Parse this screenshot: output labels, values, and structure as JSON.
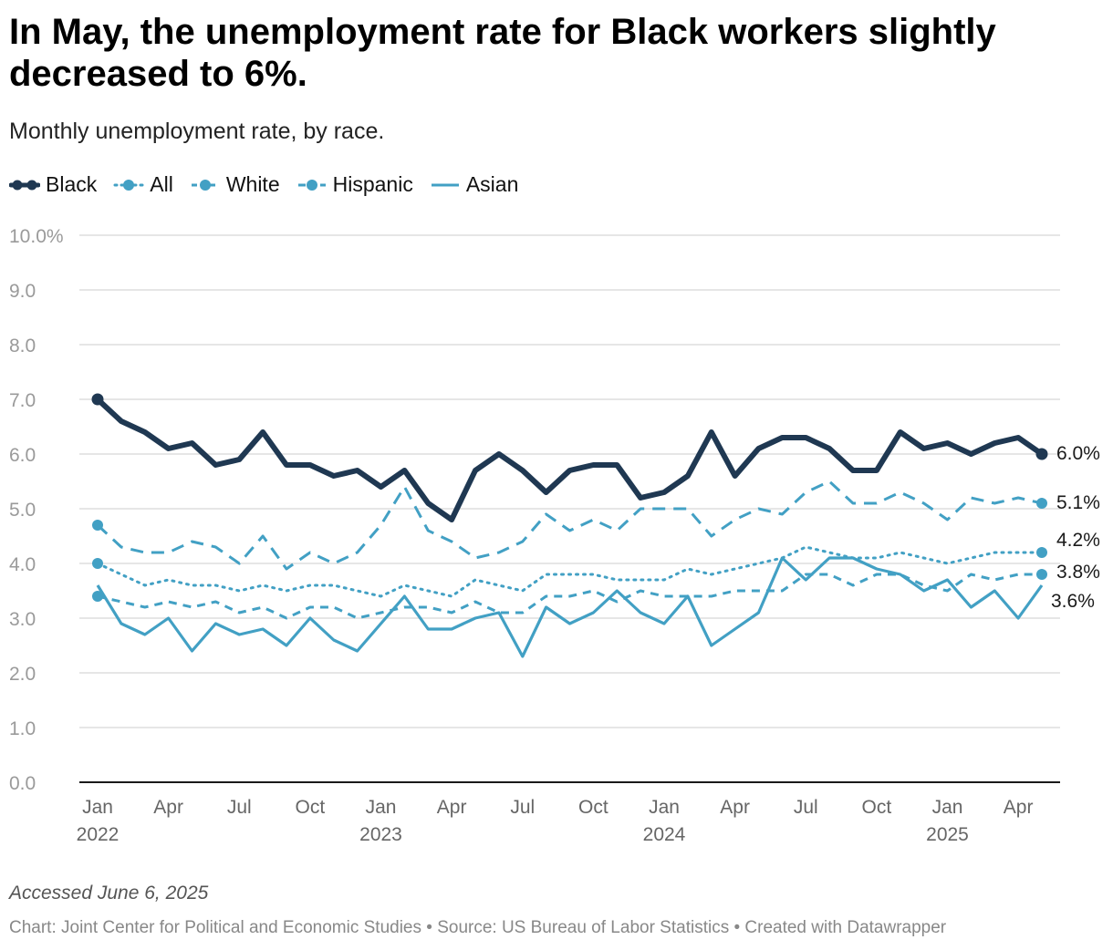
{
  "title": "In May, the unemployment rate for Black workers slightly decreased to 6%.",
  "subtitle": "Monthly unemployment rate, by race.",
  "footer": {
    "note": "Accessed June 6, 2025",
    "credit": "Chart: Joint Center for Political and Economic Studies • Source: US Bureau of Labor Statistics • Created with Datawrapper"
  },
  "colors": {
    "black": "#1f3852",
    "teal": "#42a0c4",
    "grid": "#dedede",
    "axis": "#1a1a1a",
    "tick": "#9a9a9a"
  },
  "chart_data": {
    "type": "line",
    "title": "In May, the unemployment rate for Black workers slightly decreased to 6%.",
    "ylim": [
      0,
      10
    ],
    "yticks": [
      {
        "value": 0,
        "label": "0.0"
      },
      {
        "value": 1,
        "label": "1.0"
      },
      {
        "value": 2,
        "label": "2.0"
      },
      {
        "value": 3,
        "label": "3.0"
      },
      {
        "value": 4,
        "label": "4.0"
      },
      {
        "value": 5,
        "label": "5.0"
      },
      {
        "value": 6,
        "label": "6.0"
      },
      {
        "value": 7,
        "label": "7.0"
      },
      {
        "value": 8,
        "label": "8.0"
      },
      {
        "value": 9,
        "label": "9.0"
      },
      {
        "value": 10,
        "label": "10.0%"
      }
    ],
    "x_count": 41,
    "xticks": [
      {
        "index": 0,
        "label": "Jan",
        "year": "2022"
      },
      {
        "index": 3,
        "label": "Apr",
        "year": ""
      },
      {
        "index": 6,
        "label": "Jul",
        "year": ""
      },
      {
        "index": 9,
        "label": "Oct",
        "year": ""
      },
      {
        "index": 12,
        "label": "Jan",
        "year": "2023"
      },
      {
        "index": 15,
        "label": "Apr",
        "year": ""
      },
      {
        "index": 18,
        "label": "Jul",
        "year": ""
      },
      {
        "index": 21,
        "label": "Oct",
        "year": ""
      },
      {
        "index": 24,
        "label": "Jan",
        "year": "2024"
      },
      {
        "index": 27,
        "label": "Apr",
        "year": ""
      },
      {
        "index": 30,
        "label": "Jul",
        "year": ""
      },
      {
        "index": 33,
        "label": "Oct",
        "year": ""
      },
      {
        "index": 36,
        "label": "Jan",
        "year": "2025"
      },
      {
        "index": 39,
        "label": "Apr",
        "year": ""
      }
    ],
    "series": [
      {
        "name": "Black",
        "style": "solid-thick",
        "color": "#1f3852",
        "end_label": "6.0%",
        "values": [
          7.0,
          6.6,
          6.4,
          6.1,
          6.2,
          5.8,
          5.9,
          6.4,
          5.8,
          5.8,
          5.6,
          5.7,
          5.4,
          5.7,
          5.1,
          4.8,
          5.7,
          6.0,
          5.7,
          5.3,
          5.7,
          5.8,
          5.8,
          5.2,
          5.3,
          5.6,
          6.4,
          5.6,
          6.1,
          6.3,
          6.3,
          6.1,
          5.7,
          5.7,
          6.4,
          6.1,
          6.2,
          6.0,
          6.2,
          6.3,
          6.0
        ]
      },
      {
        "name": "All",
        "style": "dotted",
        "color": "#42a0c4",
        "end_label": "4.2%",
        "values": [
          4.0,
          3.8,
          3.6,
          3.7,
          3.6,
          3.6,
          3.5,
          3.6,
          3.5,
          3.6,
          3.6,
          3.5,
          3.4,
          3.6,
          3.5,
          3.4,
          3.7,
          3.6,
          3.5,
          3.8,
          3.8,
          3.8,
          3.7,
          3.7,
          3.7,
          3.9,
          3.8,
          3.9,
          4.0,
          4.1,
          4.3,
          4.2,
          4.1,
          4.1,
          4.2,
          4.1,
          4.0,
          4.1,
          4.2,
          4.2,
          4.2
        ]
      },
      {
        "name": "White",
        "style": "dashed-short",
        "color": "#42a0c4",
        "end_label": "3.8%",
        "values": [
          3.4,
          3.3,
          3.2,
          3.3,
          3.2,
          3.3,
          3.1,
          3.2,
          3.0,
          3.2,
          3.2,
          3.0,
          3.1,
          3.2,
          3.2,
          3.1,
          3.3,
          3.1,
          3.1,
          3.4,
          3.4,
          3.5,
          3.3,
          3.5,
          3.4,
          3.4,
          3.4,
          3.5,
          3.5,
          3.5,
          3.8,
          3.8,
          3.6,
          3.8,
          3.8,
          3.6,
          3.5,
          3.8,
          3.7,
          3.8,
          3.8
        ]
      },
      {
        "name": "Hispanic",
        "style": "dashed-long",
        "color": "#42a0c4",
        "end_label": "5.1%",
        "values": [
          4.7,
          4.3,
          4.2,
          4.2,
          4.4,
          4.3,
          4.0,
          4.5,
          3.9,
          4.2,
          4.0,
          4.2,
          4.7,
          5.4,
          4.6,
          4.4,
          4.1,
          4.2,
          4.4,
          4.9,
          4.6,
          4.8,
          4.6,
          5.0,
          5.0,
          5.0,
          4.5,
          4.8,
          5.0,
          4.9,
          5.3,
          5.5,
          5.1,
          5.1,
          5.3,
          5.1,
          4.8,
          5.2,
          5.1,
          5.2,
          5.1
        ]
      },
      {
        "name": "Asian",
        "style": "solid-thin",
        "color": "#42a0c4",
        "end_label": "3.6%",
        "values": [
          3.6,
          2.9,
          2.7,
          3.0,
          2.4,
          2.9,
          2.7,
          2.8,
          2.5,
          3.0,
          2.6,
          2.4,
          2.9,
          3.4,
          2.8,
          2.8,
          3.0,
          3.1,
          2.3,
          3.2,
          2.9,
          3.1,
          3.5,
          3.1,
          2.9,
          3.4,
          2.5,
          2.8,
          3.1,
          4.1,
          3.7,
          4.1,
          4.1,
          3.9,
          3.8,
          3.5,
          3.7,
          3.2,
          3.5,
          3.0,
          3.6
        ]
      }
    ]
  }
}
